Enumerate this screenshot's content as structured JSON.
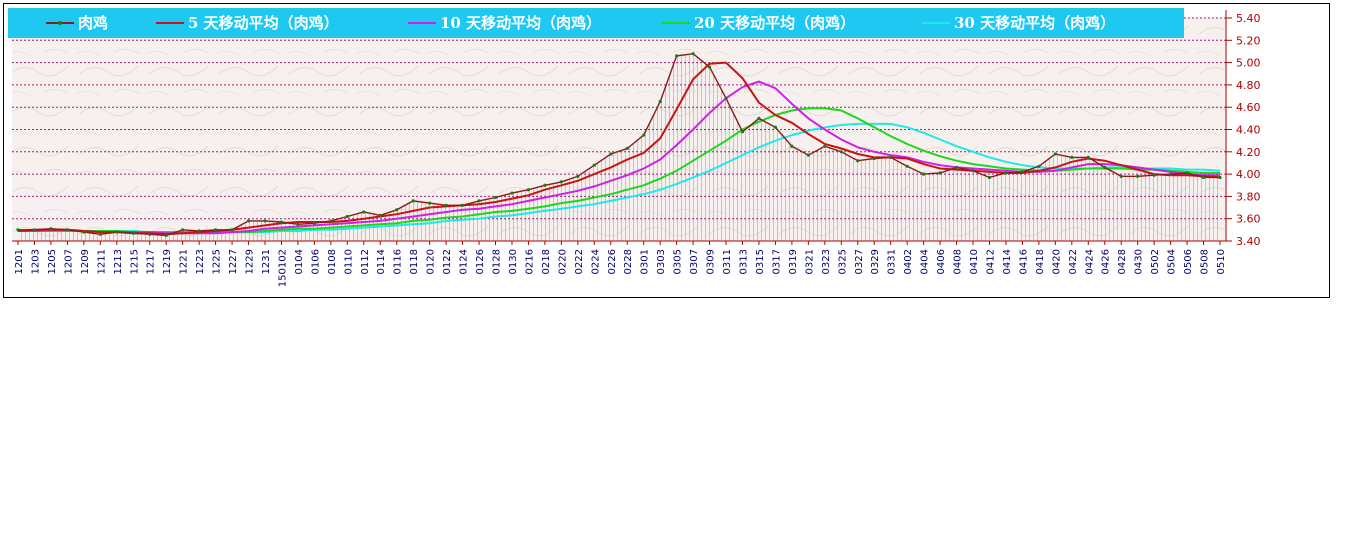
{
  "chart_data": {
    "type": "line",
    "title": "",
    "xlabel": "",
    "ylabel": "",
    "ylim": [
      3.4,
      5.4
    ],
    "yticks": [
      "5.40",
      "5.20",
      "5.00",
      "4.80",
      "4.60",
      "4.40",
      "4.20",
      "4.00",
      "3.80",
      "3.60",
      "3.40"
    ],
    "grid": true,
    "legend_position": "top",
    "x_tick_labels": [
      "1201",
      "1203",
      "1205",
      "1207",
      "1209",
      "1211",
      "1213",
      "1215",
      "1217",
      "1219",
      "1221",
      "1223",
      "1225",
      "1227",
      "1229",
      "1231",
      "150102",
      "0104",
      "0106",
      "0108",
      "0110",
      "0112",
      "0114",
      "0116",
      "0118",
      "0120",
      "0122",
      "0124",
      "0126",
      "0128",
      "0130",
      "0216",
      "0218",
      "0220",
      "0222",
      "0224",
      "0226",
      "0228",
      "0301",
      "0303",
      "0305",
      "0307",
      "0309",
      "0311",
      "0313",
      "0315",
      "0317",
      "0319",
      "0321",
      "0323",
      "0325",
      "0327",
      "0329",
      "0331",
      "0402",
      "0404",
      "0406",
      "0408",
      "0410",
      "0412",
      "0414",
      "0416",
      "0418",
      "0420",
      "0422",
      "0424",
      "0426",
      "0428",
      "0430",
      "0502",
      "0504",
      "0506",
      "0508",
      "0510"
    ],
    "series": [
      {
        "name": "肉鸡",
        "color": "#8b1a1a",
        "marker_color": "#1a7a1a",
        "values": [
          3.5,
          3.5,
          3.51,
          3.5,
          3.48,
          3.46,
          3.48,
          3.47,
          3.46,
          3.45,
          3.5,
          3.49,
          3.5,
          3.5,
          3.58,
          3.58,
          3.57,
          3.55,
          3.56,
          3.58,
          3.62,
          3.66,
          3.63,
          3.68,
          3.76,
          3.74,
          3.72,
          3.72,
          3.76,
          3.79,
          3.83,
          3.86,
          3.9,
          3.93,
          3.98,
          4.08,
          4.18,
          4.23,
          4.35,
          4.65,
          5.06,
          5.08,
          4.96,
          4.68,
          4.38,
          4.5,
          4.42,
          4.25,
          4.17,
          4.25,
          4.2,
          4.12,
          4.14,
          4.15,
          4.07,
          4.0,
          4.01,
          4.06,
          4.03,
          3.97,
          4.01,
          4.02,
          4.07,
          4.18,
          4.15,
          4.15,
          4.06,
          3.98,
          3.98,
          3.99,
          4.0,
          4.01,
          3.97,
          3.97
        ]
      },
      {
        "name": "5 天移动平均（肉鸡）",
        "color": "#c81414",
        "values": [
          3.49,
          3.5,
          3.5,
          3.5,
          3.49,
          3.48,
          3.48,
          3.47,
          3.47,
          3.46,
          3.47,
          3.48,
          3.49,
          3.5,
          3.52,
          3.54,
          3.56,
          3.57,
          3.57,
          3.57,
          3.58,
          3.6,
          3.62,
          3.64,
          3.67,
          3.7,
          3.71,
          3.72,
          3.73,
          3.75,
          3.78,
          3.81,
          3.86,
          3.9,
          3.94,
          4.0,
          4.06,
          4.13,
          4.19,
          4.32,
          4.58,
          4.85,
          4.99,
          5.0,
          4.86,
          4.64,
          4.53,
          4.46,
          4.36,
          4.27,
          4.23,
          4.18,
          4.15,
          4.15,
          4.14,
          4.09,
          4.05,
          4.04,
          4.03,
          4.02,
          4.01,
          4.01,
          4.03,
          4.06,
          4.11,
          4.14,
          4.12,
          4.08,
          4.04,
          4.0,
          3.99,
          3.99,
          3.98,
          3.97
        ]
      },
      {
        "name": "10 天移动平均（肉鸡）",
        "color": "#d020e8",
        "values": [
          3.49,
          3.49,
          3.5,
          3.5,
          3.49,
          3.48,
          3.48,
          3.48,
          3.48,
          3.47,
          3.47,
          3.47,
          3.47,
          3.48,
          3.49,
          3.51,
          3.52,
          3.53,
          3.54,
          3.55,
          3.56,
          3.57,
          3.58,
          3.6,
          3.62,
          3.64,
          3.66,
          3.68,
          3.69,
          3.71,
          3.73,
          3.76,
          3.79,
          3.82,
          3.85,
          3.89,
          3.94,
          3.99,
          4.05,
          4.13,
          4.26,
          4.4,
          4.55,
          4.68,
          4.78,
          4.83,
          4.77,
          4.63,
          4.5,
          4.4,
          4.31,
          4.24,
          4.2,
          4.17,
          4.15,
          4.11,
          4.08,
          4.06,
          4.05,
          4.04,
          4.03,
          4.02,
          4.02,
          4.03,
          4.06,
          4.09,
          4.09,
          4.08,
          4.06,
          4.04,
          4.02,
          4.0,
          3.99,
          3.99
        ]
      },
      {
        "name": "20 天移动平均（肉鸡）",
        "color": "#1ed61e",
        "values": [
          3.49,
          3.49,
          3.49,
          3.49,
          3.49,
          3.49,
          3.49,
          3.48,
          3.48,
          3.48,
          3.48,
          3.48,
          3.48,
          3.48,
          3.48,
          3.49,
          3.5,
          3.51,
          3.51,
          3.52,
          3.53,
          3.54,
          3.55,
          3.56,
          3.58,
          3.59,
          3.61,
          3.62,
          3.64,
          3.66,
          3.67,
          3.69,
          3.71,
          3.74,
          3.76,
          3.79,
          3.82,
          3.86,
          3.9,
          3.96,
          4.03,
          4.12,
          4.21,
          4.3,
          4.4,
          4.47,
          4.53,
          4.57,
          4.59,
          4.59,
          4.57,
          4.5,
          4.42,
          4.34,
          4.27,
          4.21,
          4.16,
          4.12,
          4.09,
          4.07,
          4.05,
          4.04,
          4.03,
          4.03,
          4.04,
          4.05,
          4.05,
          4.05,
          4.04,
          4.04,
          4.03,
          4.02,
          4.01,
          4.01
        ]
      },
      {
        "name": "30 天移动平均（肉鸡）",
        "color": "#20e8e8",
        "values": [
          3.49,
          3.49,
          3.49,
          3.49,
          3.49,
          3.49,
          3.49,
          3.49,
          3.48,
          3.48,
          3.48,
          3.48,
          3.48,
          3.48,
          3.48,
          3.48,
          3.49,
          3.49,
          3.5,
          3.5,
          3.51,
          3.52,
          3.53,
          3.54,
          3.55,
          3.56,
          3.58,
          3.59,
          3.6,
          3.62,
          3.63,
          3.65,
          3.67,
          3.69,
          3.71,
          3.73,
          3.76,
          3.79,
          3.82,
          3.86,
          3.91,
          3.97,
          4.03,
          4.1,
          4.17,
          4.24,
          4.3,
          4.35,
          4.39,
          4.42,
          4.44,
          4.45,
          4.45,
          4.45,
          4.42,
          4.37,
          4.31,
          4.25,
          4.2,
          4.15,
          4.11,
          4.08,
          4.06,
          4.05,
          4.05,
          4.05,
          4.06,
          4.06,
          4.05,
          4.05,
          4.05,
          4.04,
          4.04,
          4.03
        ]
      }
    ]
  }
}
